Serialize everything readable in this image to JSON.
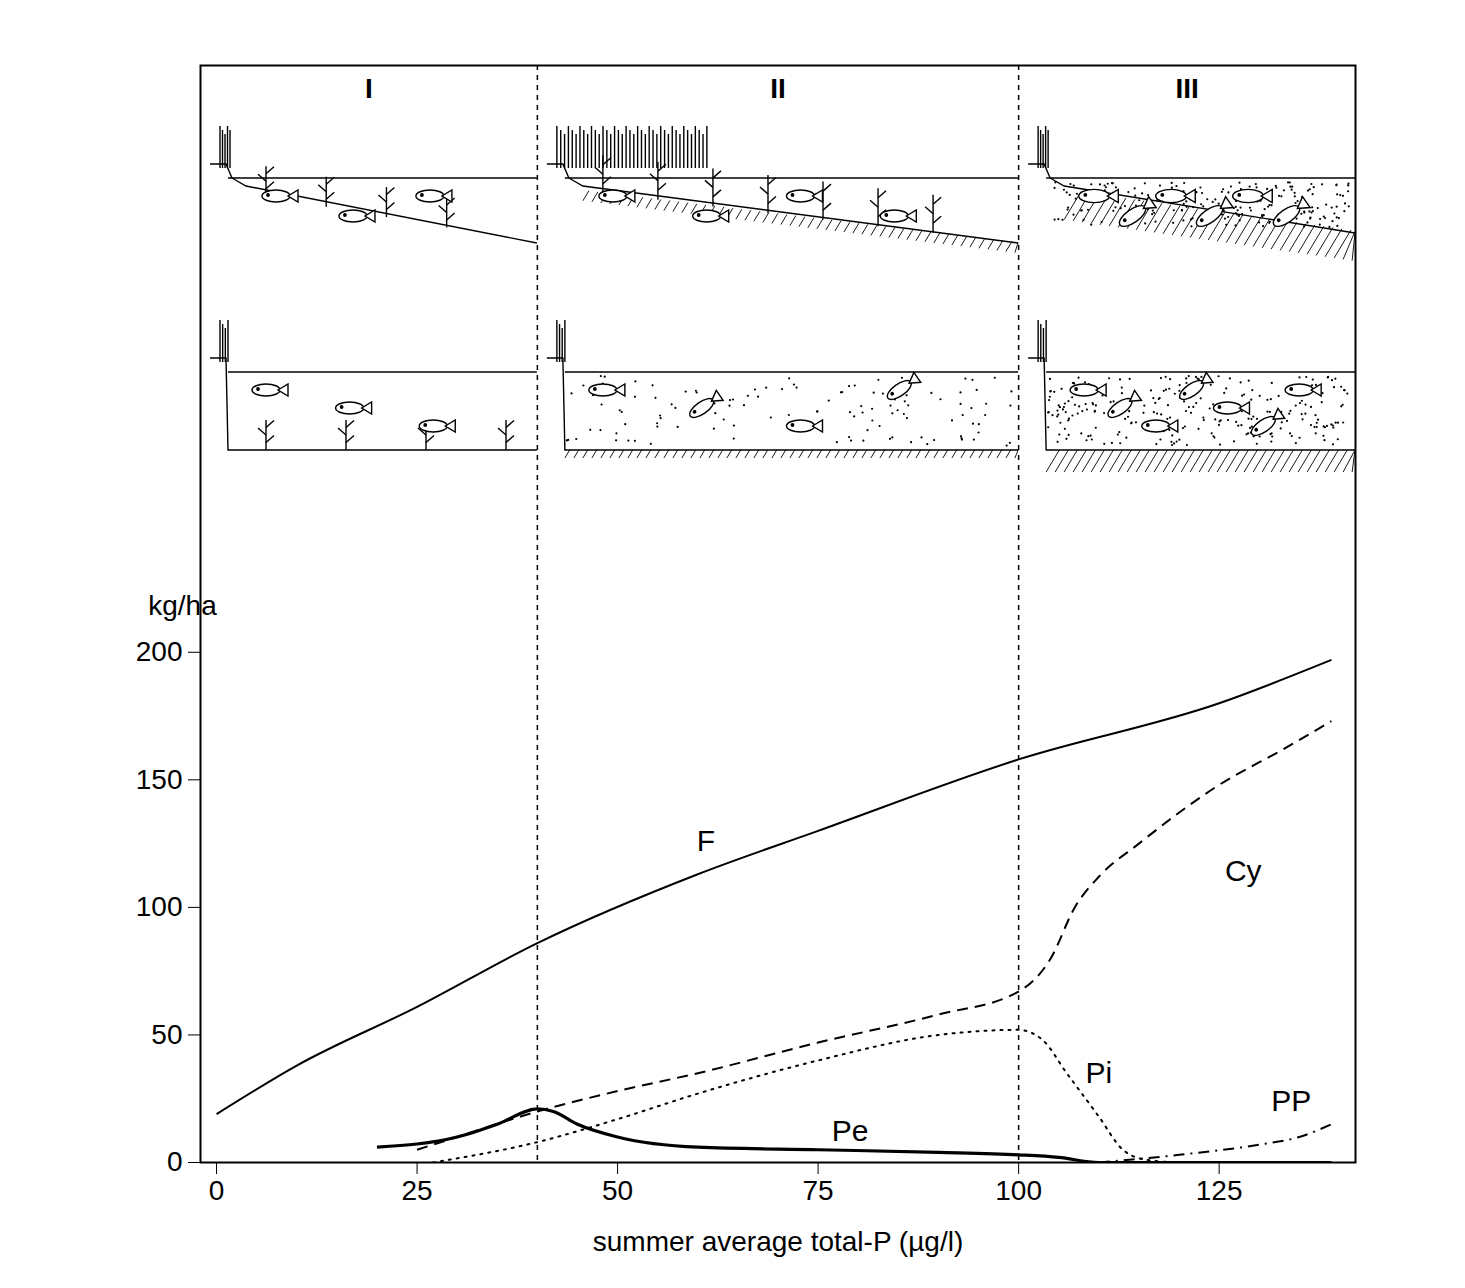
{
  "chart_data": {
    "type": "line",
    "xlabel": "summer average total-P (µg/l)",
    "ylabel": "kg/ha",
    "xlim": [
      -2,
      142
    ],
    "ylim": [
      0,
      430
    ],
    "xticks": [
      0,
      25,
      50,
      75,
      100,
      125
    ],
    "yticks": [
      0,
      50,
      100,
      150,
      200
    ],
    "dividers": [
      40,
      100
    ],
    "panels": [
      "I",
      "II",
      "III"
    ],
    "series": [
      {
        "name": "F",
        "color": "#000000",
        "line_style": "solid",
        "x": [
          0,
          10,
          25,
          40,
          60,
          75,
          100,
          125,
          139
        ],
        "values": [
          19,
          38,
          61,
          86,
          113,
          130,
          158,
          180,
          197
        ],
        "label_at": [
          61,
          126
        ]
      },
      {
        "name": "Cy",
        "color": "#000000",
        "line_style": "dashed",
        "x": [
          25,
          30,
          40,
          50,
          60,
          75,
          90,
          100,
          104,
          107,
          110,
          115,
          125,
          133,
          139
        ],
        "values": [
          5,
          10,
          20,
          28,
          35,
          47,
          58,
          67,
          80,
          100,
          112,
          125,
          148,
          162,
          173
        ],
        "label_at": [
          128,
          114
        ]
      },
      {
        "name": "Pi",
        "color": "#000000",
        "line_style": "dotted",
        "x": [
          27,
          40,
          50,
          60,
          75,
          90,
          100,
          103,
          106,
          110,
          113,
          116,
          120
        ],
        "values": [
          0,
          8,
          17,
          27,
          40,
          50,
          52,
          48,
          35,
          18,
          5,
          1,
          0
        ],
        "label_at": [
          110,
          35
        ]
      },
      {
        "name": "Pe",
        "color": "#000000",
        "line_style": "solid",
        "x": [
          20,
          30,
          35,
          40,
          42,
          45,
          50,
          60,
          75,
          90,
          100,
          105,
          110,
          120,
          139
        ],
        "values": [
          6,
          10,
          15,
          21,
          20,
          15,
          10,
          6,
          5,
          4,
          3,
          2,
          0,
          0,
          0
        ],
        "label_at": [
          79,
          12
        ]
      },
      {
        "name": "PP",
        "color": "#000000",
        "line_style": "dashdot",
        "x": [
          110,
          120,
          130,
          135,
          139
        ],
        "values": [
          0,
          3,
          7,
          10,
          15
        ],
        "label_at": [
          134,
          24
        ]
      }
    ]
  }
}
